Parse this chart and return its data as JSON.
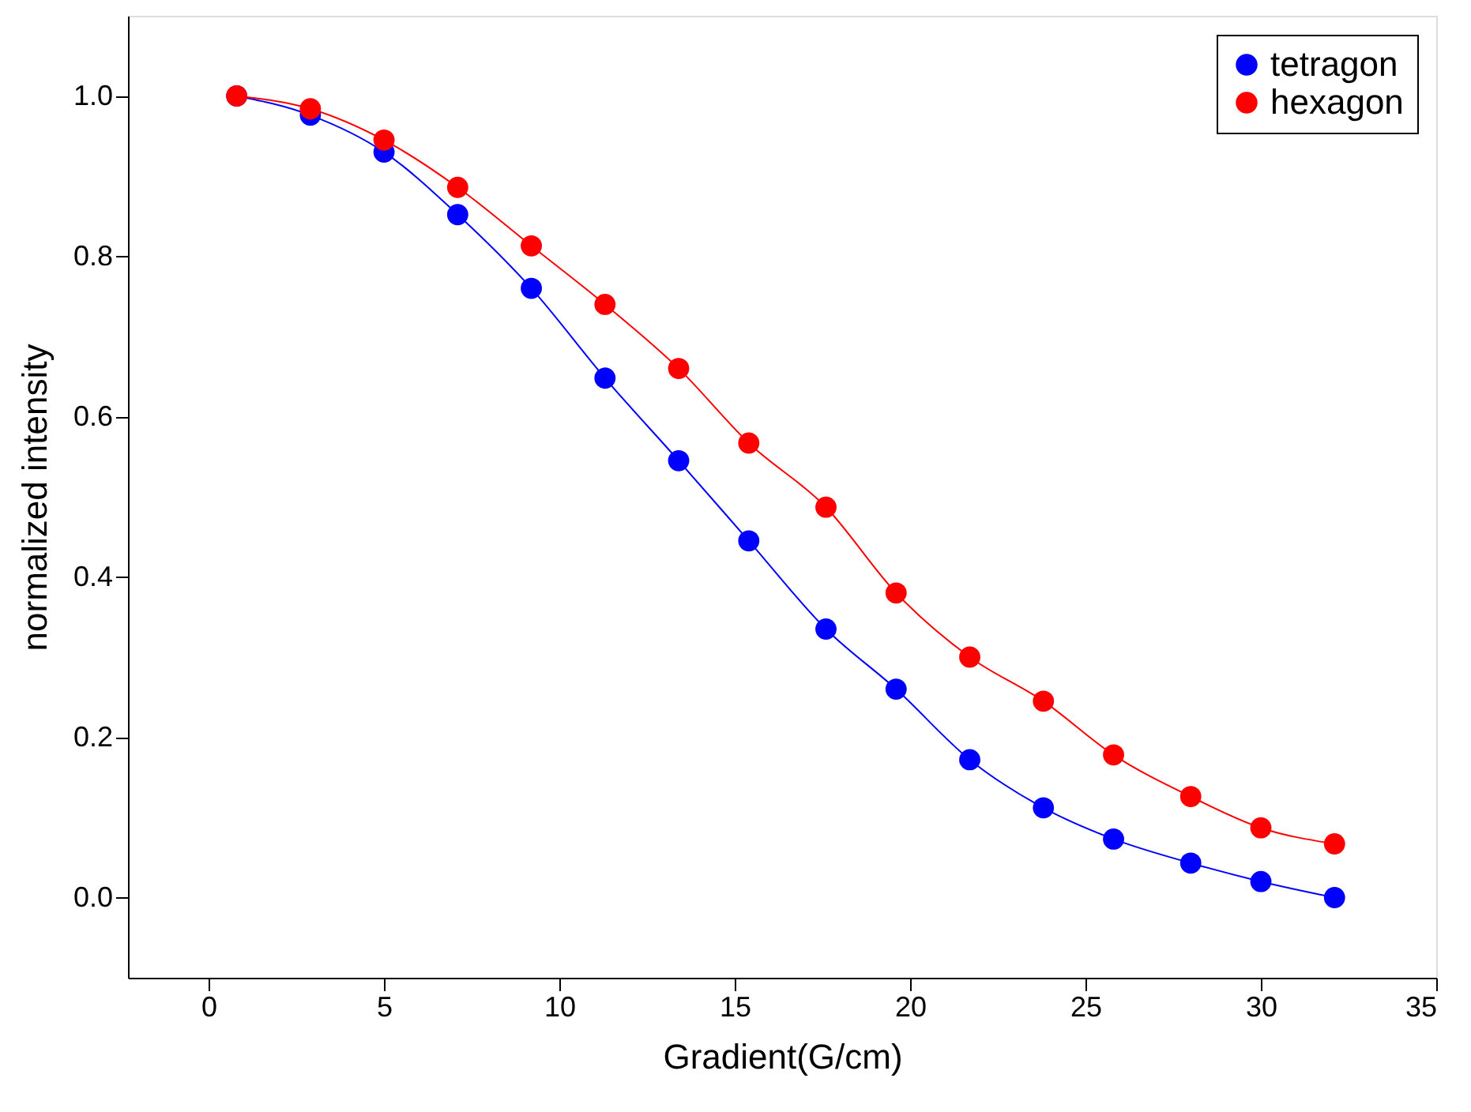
{
  "chart_data": {
    "type": "line",
    "xlabel": "Gradient(G/cm)",
    "ylabel": "normalized intensity",
    "x": [
      0.8,
      2.9,
      5.0,
      7.1,
      9.2,
      11.3,
      13.4,
      15.4,
      17.6,
      19.6,
      21.7,
      23.8,
      25.8,
      28.0,
      30.0,
      32.1
    ],
    "series": [
      {
        "name": "tetragon",
        "color": "#0000ff",
        "values": [
          1.0,
          0.976,
          0.93,
          0.852,
          0.76,
          0.648,
          0.545,
          0.445,
          0.335,
          0.26,
          0.172,
          0.112,
          0.073,
          0.043,
          0.02,
          0.0
        ]
      },
      {
        "name": "hexagon",
        "color": "#ff0000",
        "values": [
          1.0,
          0.984,
          0.945,
          0.886,
          0.813,
          0.74,
          0.66,
          0.567,
          0.487,
          0.38,
          0.3,
          0.245,
          0.178,
          0.126,
          0.087,
          0.067
        ]
      }
    ],
    "xlim": [
      -2.3,
      35
    ],
    "xticks": [
      0,
      5,
      10,
      15,
      20,
      25,
      30,
      35
    ],
    "ylim": [
      -0.1,
      1.1
    ],
    "yticks": [
      {
        "value": 0,
        "label": "0.0"
      },
      0.2,
      0.4,
      0.6,
      0.8,
      {
        "value": 1,
        "label": "1.0"
      }
    ],
    "legend": "top right",
    "marker": "circle",
    "line_style": "solid",
    "grid": false
  }
}
